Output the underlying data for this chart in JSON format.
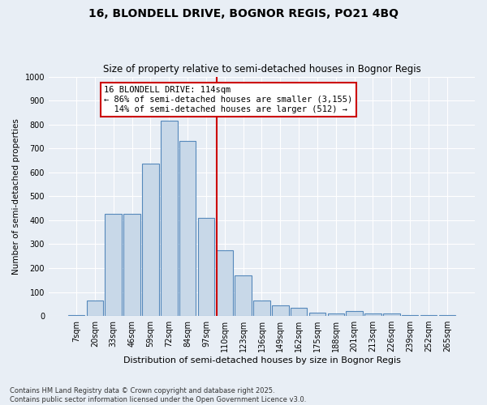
{
  "title1": "16, BLONDELL DRIVE, BOGNOR REGIS, PO21 4BQ",
  "title2": "Size of property relative to semi-detached houses in Bognor Regis",
  "xlabel": "Distribution of semi-detached houses by size in Bognor Regis",
  "ylabel": "Number of semi-detached properties",
  "categories": [
    "7sqm",
    "20sqm",
    "33sqm",
    "46sqm",
    "59sqm",
    "72sqm",
    "84sqm",
    "97sqm",
    "110sqm",
    "123sqm",
    "136sqm",
    "149sqm",
    "162sqm",
    "175sqm",
    "188sqm",
    "201sqm",
    "213sqm",
    "226sqm",
    "239sqm",
    "252sqm",
    "265sqm"
  ],
  "values": [
    5,
    65,
    425,
    425,
    635,
    815,
    730,
    410,
    275,
    170,
    65,
    45,
    35,
    15,
    10,
    20,
    10,
    10,
    5,
    5,
    2
  ],
  "bar_color": "#c8d8e8",
  "bar_edge_color": "#5588bb",
  "vline_color": "#cc0000",
  "annotation_text": "16 BLONDELL DRIVE: 114sqm\n← 86% of semi-detached houses are smaller (3,155)\n  14% of semi-detached houses are larger (512) →",
  "annotation_box_color": "#ffffff",
  "annotation_box_edge": "#cc0000",
  "ylim": [
    0,
    1000
  ],
  "yticks": [
    0,
    100,
    200,
    300,
    400,
    500,
    600,
    700,
    800,
    900,
    1000
  ],
  "background_color": "#e8eef5",
  "grid_color": "#ffffff",
  "footer": "Contains HM Land Registry data © Crown copyright and database right 2025.\nContains public sector information licensed under the Open Government Licence v3.0.",
  "title1_fontsize": 10,
  "title2_fontsize": 8.5,
  "xlabel_fontsize": 8,
  "ylabel_fontsize": 7.5,
  "tick_fontsize": 7,
  "annotation_fontsize": 7.5,
  "footer_fontsize": 6
}
